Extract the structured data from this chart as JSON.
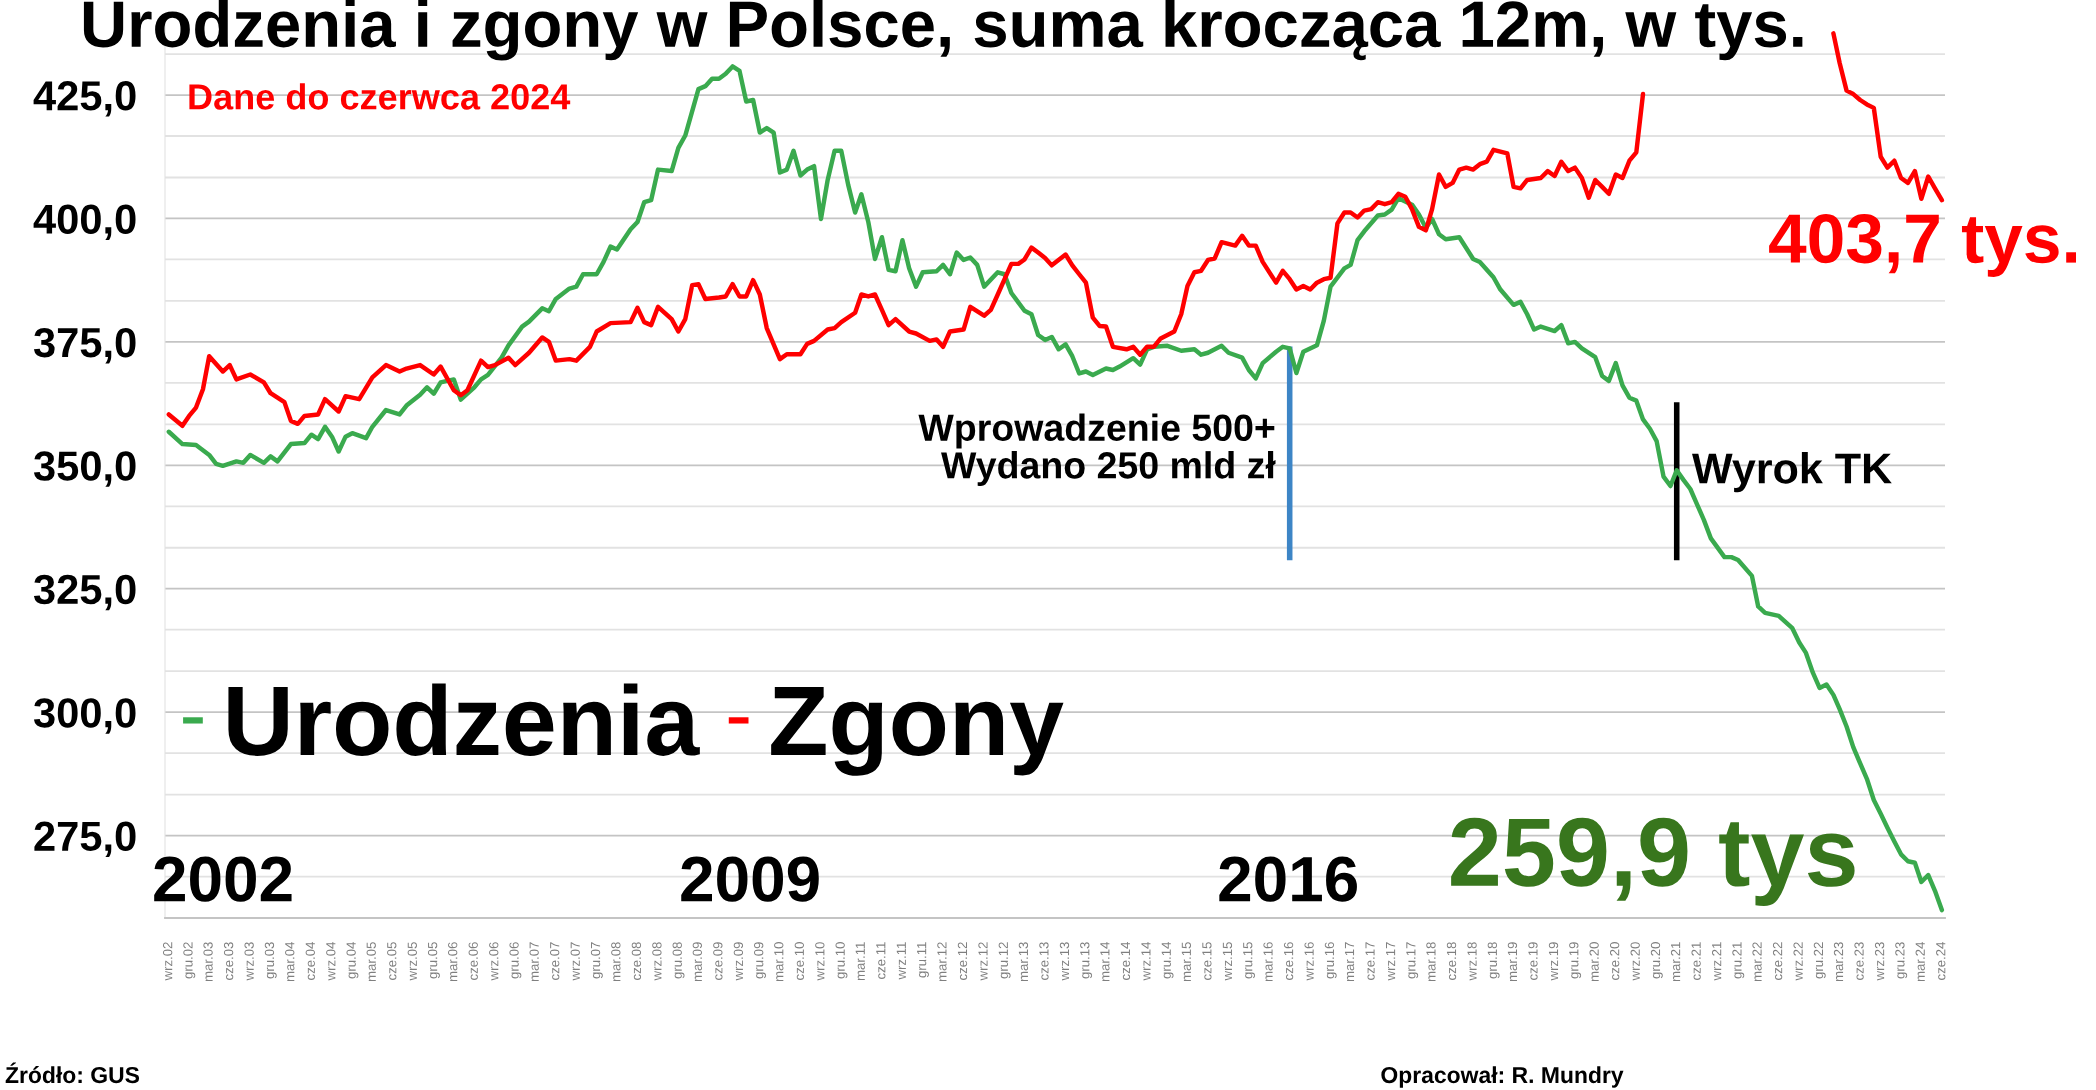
{
  "chart_data": {
    "type": "line",
    "title": "Urodzenia i zgony w Polsce, suma krocząca 12m, w tys.",
    "series": [
      {
        "name": "Urodzenia",
        "color": "#3aaa4e",
        "x": [
          "2002-09",
          "2002-11",
          "2003-01",
          "2003-03",
          "2003-04",
          "2003-05",
          "2003-07",
          "2003-08",
          "2003-09",
          "2003-11",
          "2003-12",
          "2004-01",
          "2004-03",
          "2004-05",
          "2004-06",
          "2004-07",
          "2004-08",
          "2004-09",
          "2004-10",
          "2004-11",
          "2004-12",
          "2005-02",
          "2005-03",
          "2005-05",
          "2005-07",
          "2005-08",
          "2005-10",
          "2005-11",
          "2005-12",
          "2006-01",
          "2006-03",
          "2006-04",
          "2006-06",
          "2006-07",
          "2006-08",
          "2006-10",
          "2006-11",
          "2007-01",
          "2007-02",
          "2007-04",
          "2007-05",
          "2007-06",
          "2007-08",
          "2007-09",
          "2007-10",
          "2007-12",
          "2008-01",
          "2008-02",
          "2008-03",
          "2008-05",
          "2008-06",
          "2008-07",
          "2008-08",
          "2008-09",
          "2008-11",
          "2008-12",
          "2009-01",
          "2009-03",
          "2009-04",
          "2009-05",
          "2009-06",
          "2009-07",
          "2009-08",
          "2009-09",
          "2009-10",
          "2009-11",
          "2009-12",
          "2010-01",
          "2010-02",
          "2010-03",
          "2010-04",
          "2010-05",
          "2010-06",
          "2010-07",
          "2010-08",
          "2010-09",
          "2010-10",
          "2010-11",
          "2010-12",
          "2011-01",
          "2011-02",
          "2011-03",
          "2011-04",
          "2011-05",
          "2011-06",
          "2011-07",
          "2011-08",
          "2011-09",
          "2011-10",
          "2011-11",
          "2011-12",
          "2012-02",
          "2012-03",
          "2012-04",
          "2012-05",
          "2012-06",
          "2012-07",
          "2012-08",
          "2012-09",
          "2012-11",
          "2012-12",
          "2013-01",
          "2013-03",
          "2013-04",
          "2013-05",
          "2013-06",
          "2013-07",
          "2013-08",
          "2013-09",
          "2013-10",
          "2013-11",
          "2013-12",
          "2014-01",
          "2014-03",
          "2014-04",
          "2014-05",
          "2014-07",
          "2014-08",
          "2014-09",
          "2014-10",
          "2014-12",
          "2015-02",
          "2015-04",
          "2015-05",
          "2015-06",
          "2015-08",
          "2015-09",
          "2015-11",
          "2015-12",
          "2016-01",
          "2016-02",
          "2016-04",
          "2016-05",
          "2016-06",
          "2016-07",
          "2016-08",
          "2016-10",
          "2016-11",
          "2016-12",
          "2017-02",
          "2017-03",
          "2017-04",
          "2017-05",
          "2017-07",
          "2017-08",
          "2017-09",
          "2017-10",
          "2017-12",
          "2018-01",
          "2018-02",
          "2018-03",
          "2018-04",
          "2018-05",
          "2018-07",
          "2018-09",
          "2018-10",
          "2018-12",
          "2019-01",
          "2019-03",
          "2019-04",
          "2019-05",
          "2019-06",
          "2019-07",
          "2019-09",
          "2019-10",
          "2019-11",
          "2019-12",
          "2020-01",
          "2020-03",
          "2020-04",
          "2020-05",
          "2020-06",
          "2020-07",
          "2020-08",
          "2020-09",
          "2020-10",
          "2020-11",
          "2020-12",
          "2021-01",
          "2021-02",
          "2021-03",
          "2021-04",
          "2021-05",
          "2021-06",
          "2021-07",
          "2021-08",
          "2021-10",
          "2021-11",
          "2021-12",
          "2022-02",
          "2022-03",
          "2022-04",
          "2022-06",
          "2022-08",
          "2022-09",
          "2022-10",
          "2022-11",
          "2022-12",
          "2023-01",
          "2023-02",
          "2023-03",
          "2023-04",
          "2023-05",
          "2023-06",
          "2023-07",
          "2023-08",
          "2023-09",
          "2023-10",
          "2023-11",
          "2023-12",
          "2024-01",
          "2024-02",
          "2024-03",
          "2024-04",
          "2024-05",
          "2024-06"
        ],
        "values": [
          356.8,
          354.3,
          354.1,
          352.1,
          350.3,
          349.9,
          350.8,
          350.5,
          352.1,
          350.5,
          351.8,
          350.8,
          354.3,
          354.5,
          356.2,
          355.3,
          357.8,
          355.8,
          352.8,
          355.8,
          356.5,
          355.5,
          357.8,
          361.2,
          360.3,
          362.1,
          364.3,
          365.8,
          364.5,
          366.8,
          367.4,
          363.3,
          365.8,
          367.4,
          368.3,
          371.8,
          374.3,
          378.1,
          379.1,
          381.8,
          381.2,
          383.7,
          385.8,
          386.2,
          388.7,
          388.7,
          391.2,
          394.3,
          393.7,
          397.8,
          399.3,
          403.3,
          403.7,
          409.9,
          409.6,
          414.3,
          416.8,
          426.2,
          426.8,
          428.3,
          428.3,
          429.3,
          430.8,
          429.9,
          423.7,
          424.0,
          417.4,
          418.3,
          417.4,
          409.3,
          409.9,
          413.7,
          408.7,
          409.9,
          410.6,
          399.9,
          407.8,
          413.7,
          413.7,
          406.8,
          401.2,
          404.9,
          399.3,
          391.8,
          396.2,
          389.6,
          389.3,
          395.6,
          389.9,
          386.2,
          389.1,
          389.3,
          390.6,
          388.7,
          393.1,
          391.6,
          392.1,
          390.6,
          386.2,
          389.1,
          388.7,
          384.9,
          381.3,
          380.6,
          376.4,
          375.4,
          376.0,
          373.5,
          374.5,
          372.1,
          368.6,
          369.0,
          368.3,
          369.6,
          369.3,
          370.0,
          371.7,
          370.4,
          373.5,
          374.0,
          374.2,
          373.2,
          373.5,
          372.4,
          372.8,
          374.2,
          372.8,
          371.8,
          369.3,
          367.6,
          370.7,
          373.0,
          374.0,
          373.7,
          368.7,
          373.0,
          374.3,
          379.3,
          386.2,
          389.9,
          390.6,
          395.6,
          397.4,
          400.6,
          400.8,
          401.8,
          404.1,
          402.8,
          400.8,
          398.1,
          399.9,
          396.8,
          395.8,
          396.2,
          391.8,
          391.2,
          388.1,
          385.6,
          382.5,
          383.1,
          380.6,
          377.5,
          378.1,
          377.2,
          378.4,
          374.7,
          375.0,
          373.7,
          371.9,
          368.1,
          367.1,
          370.7,
          366.2,
          363.7,
          363.1,
          359.3,
          357.4,
          354.9,
          347.7,
          345.8,
          349.0,
          347.0,
          345.2,
          342.0,
          338.9,
          335.2,
          331.4,
          331.4,
          330.8,
          327.6,
          321.4,
          320.1,
          319.5,
          317.0,
          314.1,
          312.0,
          308.0,
          304.9,
          305.6,
          303.5,
          300.6,
          297.1,
          292.9,
          289.6,
          286.5,
          282.2,
          279.4,
          276.6,
          273.8,
          271.2,
          269.8,
          269.5,
          265.6,
          267.0,
          263.8,
          259.9
        ]
      },
      {
        "name": "Zgony",
        "color": "#ff0000",
        "x": [
          "2002-09",
          "2002-11",
          "2002-12",
          "2003-01",
          "2003-02",
          "2003-03",
          "2003-05",
          "2003-06",
          "2003-07",
          "2003-09",
          "2003-11",
          "2003-12",
          "2004-02",
          "2004-03",
          "2004-04",
          "2004-05",
          "2004-07",
          "2004-08",
          "2004-10",
          "2004-11",
          "2005-01",
          "2005-03",
          "2005-05",
          "2005-07",
          "2005-08",
          "2005-10",
          "2005-12",
          "2006-01",
          "2006-03",
          "2006-04",
          "2006-05",
          "2006-07",
          "2006-08",
          "2006-09",
          "2006-11",
          "2006-12",
          "2007-02",
          "2007-04",
          "2007-05",
          "2007-06",
          "2007-08",
          "2007-09",
          "2007-11",
          "2007-12",
          "2008-02",
          "2008-05",
          "2008-06",
          "2008-07",
          "2008-08",
          "2008-09",
          "2008-11",
          "2008-12",
          "2009-01",
          "2009-02",
          "2009-03",
          "2009-04",
          "2009-06",
          "2009-07",
          "2009-08",
          "2009-09",
          "2009-10",
          "2009-11",
          "2009-12",
          "2010-01",
          "2010-03",
          "2010-04",
          "2010-06",
          "2010-07",
          "2010-08",
          "2010-10",
          "2010-11",
          "2010-12",
          "2011-02",
          "2011-03",
          "2011-04",
          "2011-05",
          "2011-06",
          "2011-07",
          "2011-08",
          "2011-10",
          "2011-11",
          "2012-01",
          "2012-02",
          "2012-03",
          "2012-04",
          "2012-06",
          "2012-07",
          "2012-09",
          "2012-10",
          "2012-11",
          "2013-01",
          "2013-02",
          "2013-03",
          "2013-04",
          "2013-05",
          "2013-06",
          "2013-07",
          "2013-09",
          "2013-10",
          "2013-11",
          "2013-12",
          "2014-01",
          "2014-02",
          "2014-03",
          "2014-04",
          "2014-06",
          "2014-07",
          "2014-08",
          "2014-09",
          "2014-10",
          "2014-11",
          "2015-01",
          "2015-02",
          "2015-03",
          "2015-04",
          "2015-05",
          "2015-06",
          "2015-07",
          "2015-08",
          "2015-10",
          "2015-11",
          "2015-12",
          "2016-01",
          "2016-02",
          "2016-04",
          "2016-05",
          "2016-06",
          "2016-07",
          "2016-08",
          "2016-09",
          "2016-10",
          "2016-11",
          "2016-12",
          "2017-01",
          "2017-02",
          "2017-03",
          "2017-04",
          "2017-05",
          "2017-06",
          "2017-07",
          "2017-08",
          "2017-09",
          "2017-10",
          "2017-11",
          "2017-12",
          "2018-01",
          "2018-02",
          "2018-03",
          "2018-04",
          "2018-05",
          "2018-06",
          "2018-07",
          "2018-08",
          "2018-09",
          "2018-10",
          "2018-11",
          "2018-12",
          "2019-02",
          "2019-03",
          "2019-04",
          "2019-05",
          "2019-07",
          "2019-08",
          "2019-09",
          "2019-10",
          "2019-11",
          "2019-12",
          "2020-01",
          "2020-02",
          "2020-03",
          "2020-04",
          "2020-05",
          "2020-06",
          "2020-07",
          "2020-08",
          "2020-09",
          "2020-10",
          "2020-11",
          "2023-01",
          "2023-02",
          "2023-03",
          "2023-04",
          "2023-05",
          "2023-06",
          "2023-07",
          "2023-08",
          "2023-09",
          "2023-10",
          "2023-11",
          "2023-12",
          "2024-01",
          "2024-02",
          "2024-03",
          "2024-04",
          "2024-05",
          "2024-06"
        ],
        "values": [
          360.3,
          358.0,
          360.0,
          361.7,
          365.4,
          372.1,
          369.0,
          370.3,
          367.4,
          368.4,
          366.8,
          364.6,
          362.8,
          359.0,
          358.4,
          360.0,
          360.3,
          363.4,
          360.9,
          364.0,
          363.4,
          367.8,
          370.3,
          369.0,
          369.6,
          370.3,
          368.4,
          370.0,
          365.2,
          364.2,
          365.2,
          371.2,
          369.9,
          370.3,
          371.8,
          370.3,
          372.8,
          375.9,
          375.0,
          371.2,
          371.5,
          371.2,
          374.0,
          377.1,
          378.8,
          379.0,
          381.9,
          379.0,
          378.4,
          382.1,
          379.6,
          377.1,
          379.6,
          386.5,
          386.7,
          383.7,
          384.0,
          384.2,
          386.7,
          384.2,
          384.2,
          387.5,
          384.6,
          377.8,
          371.5,
          372.5,
          372.5,
          374.6,
          375.2,
          377.5,
          377.8,
          379.0,
          380.9,
          384.6,
          384.2,
          384.6,
          381.5,
          378.4,
          379.6,
          377.1,
          376.7,
          375.2,
          375.5,
          374.0,
          377.1,
          377.5,
          382.1,
          380.3,
          381.5,
          384.6,
          390.8,
          390.8,
          391.7,
          394.1,
          393.1,
          392.0,
          390.5,
          392.7,
          390.5,
          388.7,
          387.0,
          379.9,
          378.2,
          378.1,
          374.0,
          373.5,
          374.0,
          372.4,
          374.0,
          374.0,
          375.7,
          377.1,
          380.6,
          386.3,
          389.1,
          389.4,
          391.6,
          391.9,
          395.2,
          394.5,
          396.5,
          394.5,
          394.5,
          391.2,
          387.0,
          389.4,
          387.7,
          385.6,
          386.3,
          385.6,
          387.0,
          387.7,
          388.0,
          399.0,
          401.2,
          401.2,
          400.2,
          401.6,
          401.9,
          403.3,
          402.9,
          403.3,
          405.0,
          404.4,
          401.9,
          398.3,
          397.6,
          401.9,
          408.9,
          406.4,
          407.2,
          409.9,
          410.3,
          409.9,
          411.0,
          411.5,
          413.9,
          413.2,
          406.4,
          406.1,
          407.8,
          408.2,
          409.6,
          408.6,
          411.5,
          409.6,
          410.3,
          408.2,
          404.2,
          407.8,
          406.4,
          405.0,
          408.9,
          408.2,
          411.7,
          413.4,
          425.2,
          null,
          null,
          437.5,
          431.5,
          425.9,
          425.2,
          424.0,
          423.1,
          422.4,
          412.5,
          410.3,
          411.7,
          408.2,
          407.2,
          409.6,
          404.0,
          408.5,
          406.1,
          403.7
        ]
      }
    ],
    "xlim": [
      "2002-08-15",
      "2024-06-15"
    ],
    "xticks": [
      {
        "value": "2002-09",
        "label": "wrz.02"
      },
      {
        "value": "2002-12",
        "label": "gru.02"
      },
      {
        "value": "2003-03",
        "label": "mar.03"
      },
      {
        "value": "2003-06",
        "label": "cze.03"
      },
      {
        "value": "2003-09",
        "label": "wrz.03"
      },
      {
        "value": "2003-12",
        "label": "gru.03"
      },
      {
        "value": "2004-03",
        "label": "mar.04"
      },
      {
        "value": "2004-06",
        "label": "cze.04"
      },
      {
        "value": "2004-09",
        "label": "wrz.04"
      },
      {
        "value": "2004-12",
        "label": "gru.04"
      },
      {
        "value": "2005-03",
        "label": "mar.05"
      },
      {
        "value": "2005-06",
        "label": "cze.05"
      },
      {
        "value": "2005-09",
        "label": "wrz.05"
      },
      {
        "value": "2005-12",
        "label": "gru.05"
      },
      {
        "value": "2006-03",
        "label": "mar.06"
      },
      {
        "value": "2006-06",
        "label": "cze.06"
      },
      {
        "value": "2006-09",
        "label": "wrz.06"
      },
      {
        "value": "2006-12",
        "label": "gru.06"
      },
      {
        "value": "2007-03",
        "label": "mar.07"
      },
      {
        "value": "2007-06",
        "label": "cze.07"
      },
      {
        "value": "2007-09",
        "label": "wrz.07"
      },
      {
        "value": "2007-12",
        "label": "gru.07"
      },
      {
        "value": "2008-03",
        "label": "mar.08"
      },
      {
        "value": "2008-06",
        "label": "cze.08"
      },
      {
        "value": "2008-09",
        "label": "wrz.08"
      },
      {
        "value": "2008-12",
        "label": "gru.08"
      },
      {
        "value": "2009-03",
        "label": "mar.09"
      },
      {
        "value": "2009-06",
        "label": "cze.09"
      },
      {
        "value": "2009-09",
        "label": "wrz.09"
      },
      {
        "value": "2009-12",
        "label": "gru.09"
      },
      {
        "value": "2010-03",
        "label": "mar.10"
      },
      {
        "value": "2010-06",
        "label": "cze.10"
      },
      {
        "value": "2010-09",
        "label": "wrz.10"
      },
      {
        "value": "2010-12",
        "label": "gru.10"
      },
      {
        "value": "2011-03",
        "label": "mar.11"
      },
      {
        "value": "2011-06",
        "label": "cze.11"
      },
      {
        "value": "2011-09",
        "label": "wrz.11"
      },
      {
        "value": "2011-12",
        "label": "gru.11"
      },
      {
        "value": "2012-03",
        "label": "mar.12"
      },
      {
        "value": "2012-06",
        "label": "cze.12"
      },
      {
        "value": "2012-09",
        "label": "wrz.12"
      },
      {
        "value": "2012-12",
        "label": "gru.12"
      },
      {
        "value": "2013-03",
        "label": "mar.13"
      },
      {
        "value": "2013-06",
        "label": "cze.13"
      },
      {
        "value": "2013-09",
        "label": "wrz.13"
      },
      {
        "value": "2013-12",
        "label": "gru.13"
      },
      {
        "value": "2014-03",
        "label": "mar.14"
      },
      {
        "value": "2014-06",
        "label": "cze.14"
      },
      {
        "value": "2014-09",
        "label": "wrz.14"
      },
      {
        "value": "2014-12",
        "label": "gru.14"
      },
      {
        "value": "2015-03",
        "label": "mar.15"
      },
      {
        "value": "2015-06",
        "label": "cze.15"
      },
      {
        "value": "2015-09",
        "label": "wrz.15"
      },
      {
        "value": "2015-12",
        "label": "gru.15"
      },
      {
        "value": "2016-03",
        "label": "mar.16"
      },
      {
        "value": "2016-06",
        "label": "cze.16"
      },
      {
        "value": "2016-09",
        "label": "wrz.16"
      },
      {
        "value": "2016-12",
        "label": "gru.16"
      },
      {
        "value": "2017-03",
        "label": "mar.17"
      },
      {
        "value": "2017-06",
        "label": "cze.17"
      },
      {
        "value": "2017-09",
        "label": "wrz.17"
      },
      {
        "value": "2017-12",
        "label": "gru.17"
      },
      {
        "value": "2018-03",
        "label": "mar.18"
      },
      {
        "value": "2018-06",
        "label": "cze.18"
      },
      {
        "value": "2018-09",
        "label": "wrz.18"
      },
      {
        "value": "2018-12",
        "label": "gru.18"
      },
      {
        "value": "2019-03",
        "label": "mar.19"
      },
      {
        "value": "2019-06",
        "label": "cze.19"
      },
      {
        "value": "2019-09",
        "label": "wrz.19"
      },
      {
        "value": "2019-12",
        "label": "gru.19"
      },
      {
        "value": "2020-03",
        "label": "mar.20"
      },
      {
        "value": "2020-06",
        "label": "cze.20"
      },
      {
        "value": "2020-09",
        "label": "wrz.20"
      },
      {
        "value": "2020-12",
        "label": "gru.20"
      },
      {
        "value": "2021-03",
        "label": "mar.21"
      },
      {
        "value": "2021-06",
        "label": "cze.21"
      },
      {
        "value": "2021-09",
        "label": "wrz.21"
      },
      {
        "value": "2021-12",
        "label": "gru.21"
      },
      {
        "value": "2022-03",
        "label": "mar.22"
      },
      {
        "value": "2022-06",
        "label": "cze.22"
      },
      {
        "value": "2022-09",
        "label": "wrz.22"
      },
      {
        "value": "2022-12",
        "label": "gru.22"
      },
      {
        "value": "2023-03",
        "label": "mar.23"
      },
      {
        "value": "2023-06",
        "label": "cze.23"
      },
      {
        "value": "2023-09",
        "label": "wrz.23"
      },
      {
        "value": "2023-12",
        "label": "gru.23"
      },
      {
        "value": "2024-03",
        "label": "mar.24"
      },
      {
        "value": "2024-06",
        "label": "cze.24"
      }
    ],
    "ylim": [
      258.3,
      440
    ],
    "yticks": [
      {
        "value": 266.7,
        "label": null
      },
      {
        "value": 275,
        "label": "275,0"
      },
      {
        "value": 283.3,
        "label": null
      },
      {
        "value": 291.7,
        "label": null
      },
      {
        "value": 300,
        "label": "300,0"
      },
      {
        "value": 308.3,
        "label": null
      },
      {
        "value": 316.7,
        "label": null
      },
      {
        "value": 325,
        "label": "325,0"
      },
      {
        "value": 333.3,
        "label": null
      },
      {
        "value": 341.7,
        "label": null
      },
      {
        "value": 350,
        "label": "350,0"
      },
      {
        "value": 358.3,
        "label": null
      },
      {
        "value": 366.7,
        "label": null
      },
      {
        "value": 375,
        "label": "375,0"
      },
      {
        "value": 383.3,
        "label": null
      },
      {
        "value": 391.7,
        "label": null
      },
      {
        "value": 400,
        "label": "400,0"
      },
      {
        "value": 408.3,
        "label": null
      },
      {
        "value": 416.7,
        "label": null
      },
      {
        "value": 425,
        "label": "425,0"
      },
      {
        "value": 433.3,
        "label": null
      }
    ],
    "grid": "y",
    "legend": "bottom left",
    "line_style": "solid",
    "ref_lines": [
      {
        "axis": "x",
        "value": "2016-06",
        "label": "Wprowadzenie 500+\nWydano 250 mld zł",
        "color": "#3d85c6"
      },
      {
        "axis": "x",
        "value": "2021-03",
        "label": "Wyrok TK",
        "color": "#000000"
      }
    ],
    "annotations": [
      "Dane do czerwca 2024",
      {
        "text": "403,7 tys.",
        "x": "2024-06",
        "y": 403.7
      },
      "2002",
      "2009",
      "2016",
      {
        "text": "259,9 tys",
        "x": "2024-06",
        "y": 259.9
      },
      "Źródło: GUS",
      "Opracował: R. Mundry"
    ]
  }
}
